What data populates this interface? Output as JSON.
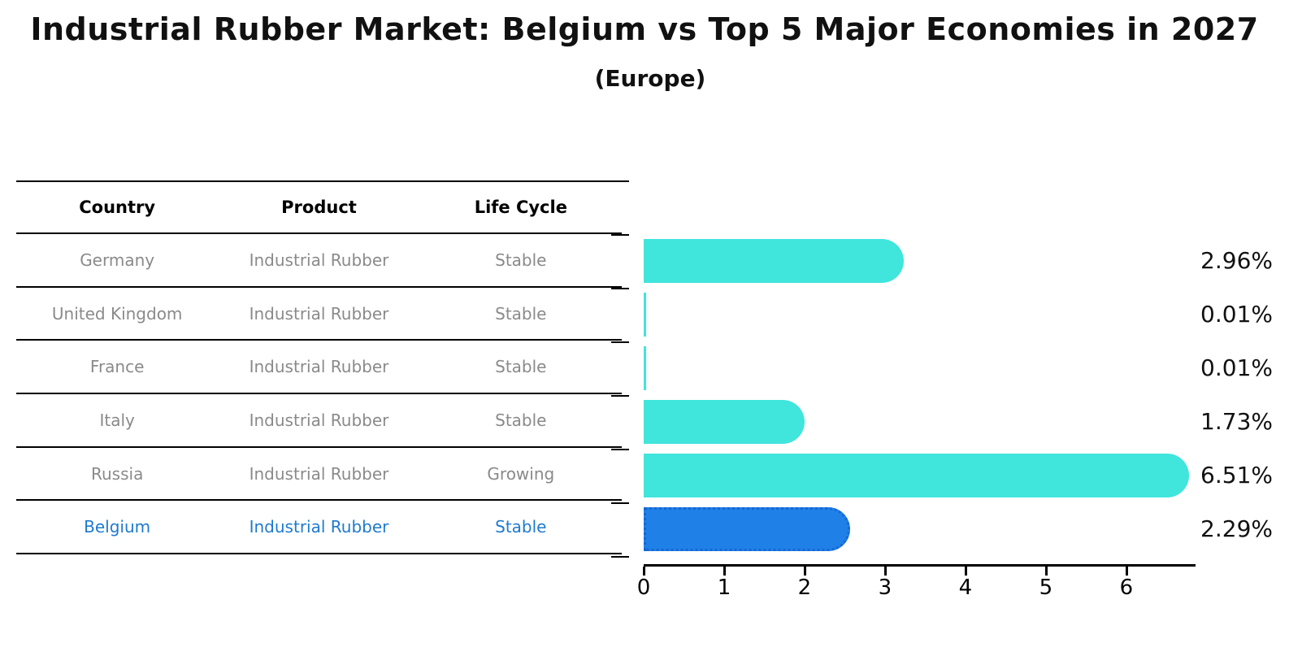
{
  "title": "Industrial Rubber Market: Belgium vs Top 5 Major Economies in 2027",
  "subtitle": "(Europe)",
  "table": {
    "headers": [
      "Country",
      "Product",
      "Life Cycle"
    ],
    "rows": [
      {
        "country": "Germany",
        "product": "Industrial Rubber",
        "life_cycle": "Stable",
        "highlighted": false
      },
      {
        "country": "United Kingdom",
        "product": "Industrial Rubber",
        "life_cycle": "Stable",
        "highlighted": false
      },
      {
        "country": "France",
        "product": "Industrial Rubber",
        "life_cycle": "Stable",
        "highlighted": false
      },
      {
        "country": "Italy",
        "product": "Industrial Rubber",
        "life_cycle": "Stable",
        "highlighted": false
      },
      {
        "country": "Russia",
        "product": "Industrial Rubber",
        "life_cycle": "Growing",
        "highlighted": false
      },
      {
        "country": "Belgium",
        "product": "Industrial Rubber",
        "life_cycle": "Stable",
        "highlighted": true
      }
    ]
  },
  "chart_data": {
    "type": "bar",
    "orientation": "horizontal",
    "categories": [
      "Germany",
      "United Kingdom",
      "France",
      "Italy",
      "Russia",
      "Belgium"
    ],
    "values": [
      2.96,
      0.01,
      0.01,
      1.73,
      6.51,
      2.29
    ],
    "value_labels": [
      "2.96%",
      "0.01%",
      "0.01%",
      "1.73%",
      "6.51%",
      "2.29%"
    ],
    "highlight_index": 5,
    "xticks": [
      "0",
      "1",
      "2",
      "3",
      "4",
      "5",
      "6"
    ],
    "xlim": [
      0,
      6.86
    ],
    "grid": false,
    "legend": false,
    "title": "Industrial Rubber Market: Belgium vs Top 5 Major Economies in 2027 (Europe)",
    "xlabel": "",
    "ylabel": ""
  },
  "colors": {
    "bar": "#40E5DC",
    "highlight_bar": "#1F80E8",
    "highlight_border": "#1668D2",
    "highlight_text": "#1E7AD0",
    "row_text": "#8A8A8A",
    "header_text": "#000000",
    "line": "#000000"
  }
}
